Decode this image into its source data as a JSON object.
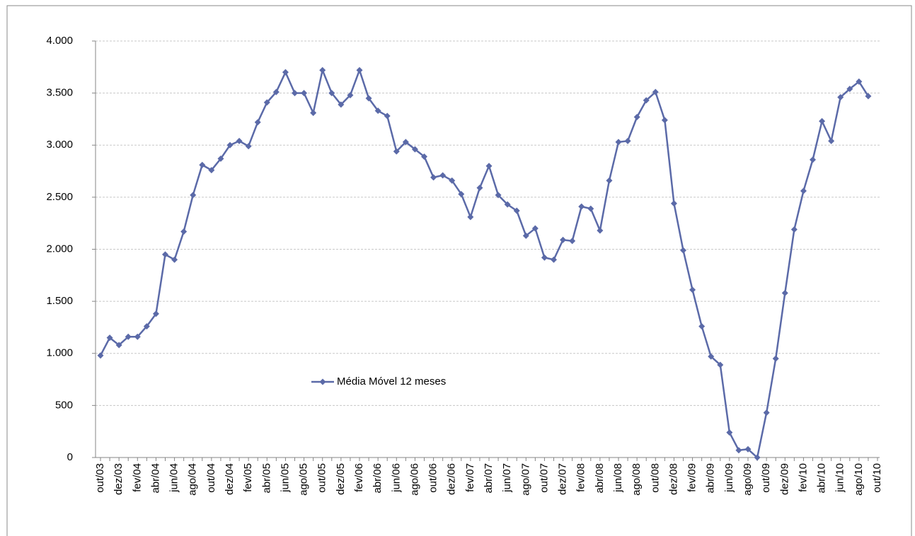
{
  "chart_data": {
    "type": "line",
    "categories": [
      "out/03",
      null,
      "dez/03",
      null,
      "fev/04",
      null,
      "abr/04",
      null,
      "jun/04",
      null,
      "ago/04",
      null,
      "out/04",
      null,
      "dez/04",
      null,
      "fev/05",
      null,
      "abr/05",
      null,
      "jun/05",
      null,
      "ago/05",
      null,
      "out/05",
      null,
      "dez/05",
      null,
      "fev/06",
      null,
      "abr/06",
      null,
      "jun/06",
      null,
      "ago/06",
      null,
      "out/06",
      null,
      "dez/06",
      null,
      "fev/07",
      null,
      "abr/07",
      null,
      "jun/07",
      null,
      "ago/07",
      null,
      "out/07",
      null,
      "dez/07",
      null,
      "fev/08",
      null,
      "abr/08",
      null,
      "jun/08",
      null,
      "ago/08",
      null,
      "out/08",
      null,
      "dez/08",
      null,
      "fev/09",
      null,
      "abr/09",
      null,
      "jun/09",
      null,
      "ago/09",
      null,
      "out/09",
      null,
      "dez/09",
      null,
      "fev/10",
      null,
      "abr/10",
      null,
      "jun/10",
      null,
      "ago/10",
      null,
      "out/10"
    ],
    "series": [
      {
        "name": "Média Móvel 12 meses",
        "color": "#5b6aa8",
        "values": [
          980,
          1150,
          1080,
          1160,
          1160,
          1260,
          1380,
          1950,
          1900,
          2170,
          2520,
          2810,
          2760,
          2870,
          3000,
          3040,
          2990,
          3220,
          3410,
          3510,
          3700,
          3500,
          3500,
          3310,
          3720,
          3500,
          3390,
          3480,
          3720,
          3450,
          3330,
          3280,
          2940,
          3030,
          2960,
          2890,
          2690,
          2710,
          2660,
          2530,
          2310,
          2590,
          2800,
          2520,
          2430,
          2370,
          2130,
          2200,
          1920,
          1900,
          2090,
          2080,
          2410,
          2390,
          2180,
          2660,
          3030,
          3040,
          3270,
          3430,
          3510,
          3240,
          2440,
          1990,
          1610,
          1260,
          970,
          890,
          240,
          70,
          80,
          0,
          430,
          950,
          1580,
          2190,
          2560,
          2860,
          3230,
          3040,
          3460,
          3540,
          3610,
          3470,
          null
        ]
      }
    ],
    "ylim": [
      0,
      4000
    ],
    "yticks": [
      0,
      500,
      {
        "value": 1000,
        "label": "1.000"
      },
      {
        "value": 1500,
        "label": "1.500"
      },
      {
        "value": 2000,
        "label": "2.000"
      },
      {
        "value": 2500,
        "label": "2.500"
      },
      {
        "value": 3000,
        "label": "3.000"
      },
      {
        "value": 3500,
        "label": "3.500"
      },
      {
        "value": 4000,
        "label": "4.000"
      }
    ],
    "grid": true,
    "legend": "center-left"
  }
}
